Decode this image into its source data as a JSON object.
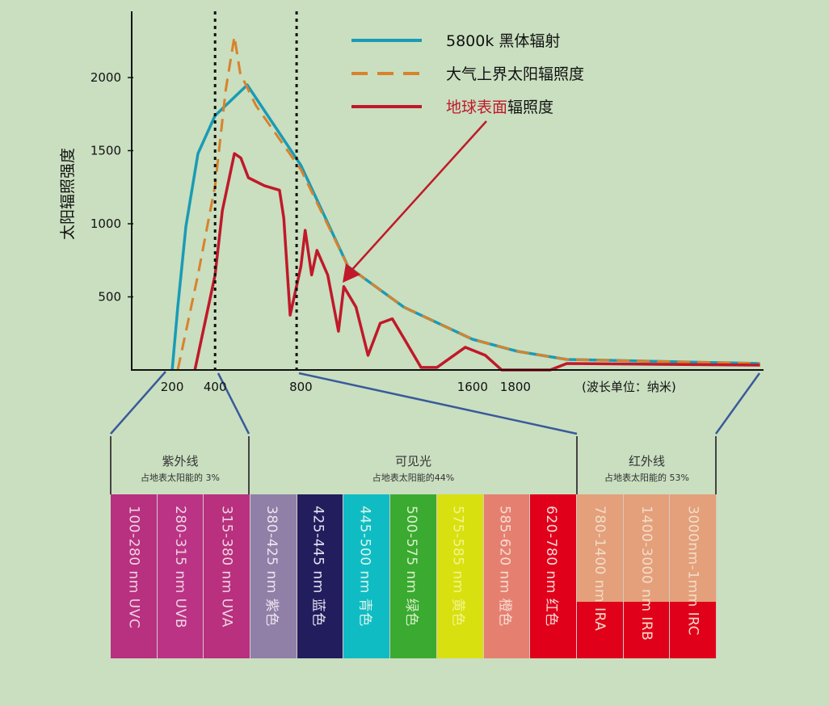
{
  "chart_data": {
    "type": "line",
    "ylabel": "太阳辐照强度",
    "xlabel": "(波长单位：纳米)",
    "xlim": [
      0,
      3000
    ],
    "ylim": [
      0,
      2300
    ],
    "y_ticks": [
      500,
      1000,
      1500,
      2000
    ],
    "x_ticks": [
      200,
      400,
      800,
      1600,
      1800
    ],
    "vertical_markers": [
      400,
      780
    ],
    "grid": false,
    "legend_position": "top-right",
    "series": [
      {
        "name": "5800k 黑体辐射",
        "color": "#1a9bb5",
        "style": "solid",
        "x": [
          200,
          226,
          264,
          320,
          400,
          550,
          800,
          1020,
          1280,
          1600,
          1810,
          2040,
          2940
        ],
        "y": [
          0,
          430,
          983,
          1480,
          1740,
          1950,
          1400,
          707,
          430,
          210,
          127,
          72,
          44
        ]
      },
      {
        "name": "大气上界太阳辐照度",
        "color": "#d9822b",
        "style": "dashed",
        "x": [
          226,
          320,
          400,
          450,
          490,
          517,
          590,
          800,
          1020,
          1280,
          1600,
          1810,
          2040,
          2940
        ],
        "y": [
          0,
          650,
          1260,
          1920,
          2280,
          2030,
          1810,
          1370,
          707,
          430,
          210,
          127,
          72,
          44
        ]
      },
      {
        "name": "地球表面辐照度",
        "name_highlight": "地球表面",
        "name_rest": "辐照度",
        "color": "#c0192a",
        "style": "solid",
        "x": [
          306,
          400,
          434,
          490,
          520,
          555,
          630,
          700,
          720,
          750,
          800,
          820,
          850,
          875,
          925,
          975,
          1000,
          1057,
          1113,
          1170,
          1226,
          1283,
          1360,
          1434,
          1566,
          1660,
          1736,
          1962,
          2040,
          2940
        ],
        "y": [
          0,
          650,
          1090,
          1480,
          1450,
          1315,
          1260,
          1230,
          1040,
          375,
          707,
          955,
          650,
          818,
          650,
          265,
          570,
          430,
          100,
          320,
          350,
          210,
          17,
          17,
          155,
          100,
          0,
          0,
          44,
          33
        ]
      }
    ],
    "annotation_arrow": {
      "target_series": "地球表面辐照度",
      "color": "#c0192a"
    }
  },
  "regions": [
    {
      "title": "紫外线",
      "subtitle": "占地表太阳能的 3%"
    },
    {
      "title": "可见光",
      "subtitle": "占地表太阳能的44%"
    },
    {
      "title": "红外线",
      "subtitle": "占地表太阳能的 53%"
    }
  ],
  "bands": [
    {
      "label": "100-280 nm  UVC",
      "color": "#b83080",
      "text_color": "#ecd4e2"
    },
    {
      "label": "280-315 nm  UVB",
      "color": "#bb3385",
      "text_color": "#ecd4e2"
    },
    {
      "label": "315-380 nm  UVA",
      "color": "#b8307e",
      "text_color": "#ecd4e2"
    },
    {
      "label": "380-425 nm  紫色",
      "color": "#9080a8",
      "text_color": "#ece4ee"
    },
    {
      "label": "425-445 nm  蓝色",
      "color": "#221e5e",
      "text_color": "#e4e0f0"
    },
    {
      "label": "445-500 nm  青色",
      "color": "#10bcc4",
      "text_color": "#d8f4e8"
    },
    {
      "label": "500-575 nm  绿色",
      "color": "#3aaa30",
      "text_color": "#d8f0c8"
    },
    {
      "label": "575-585 nm  黄色",
      "color": "#d8e010",
      "text_color": "#f4f488"
    },
    {
      "label": "585-620 nm  橙色",
      "color": "#e58070",
      "text_color": "#f6dcd0"
    },
    {
      "label": "620-780 nm  红色",
      "color": "#e0001a",
      "text_color": "#f8d8d8"
    },
    {
      "label": "780-1400 nm  IRA",
      "color": "#e3a07a",
      "lower_color": "#e0001a",
      "text_color": "#f4dcc8"
    },
    {
      "label": "1400-3000 nm  IRB",
      "color": "#e3a07a",
      "lower_color": "#e0001a",
      "text_color": "#f4dcc8"
    },
    {
      "label": "3000nm-1mm  IRC",
      "color": "#e3a07a",
      "lower_color": "#e0001a",
      "text_color": "#f4dcc8"
    }
  ]
}
